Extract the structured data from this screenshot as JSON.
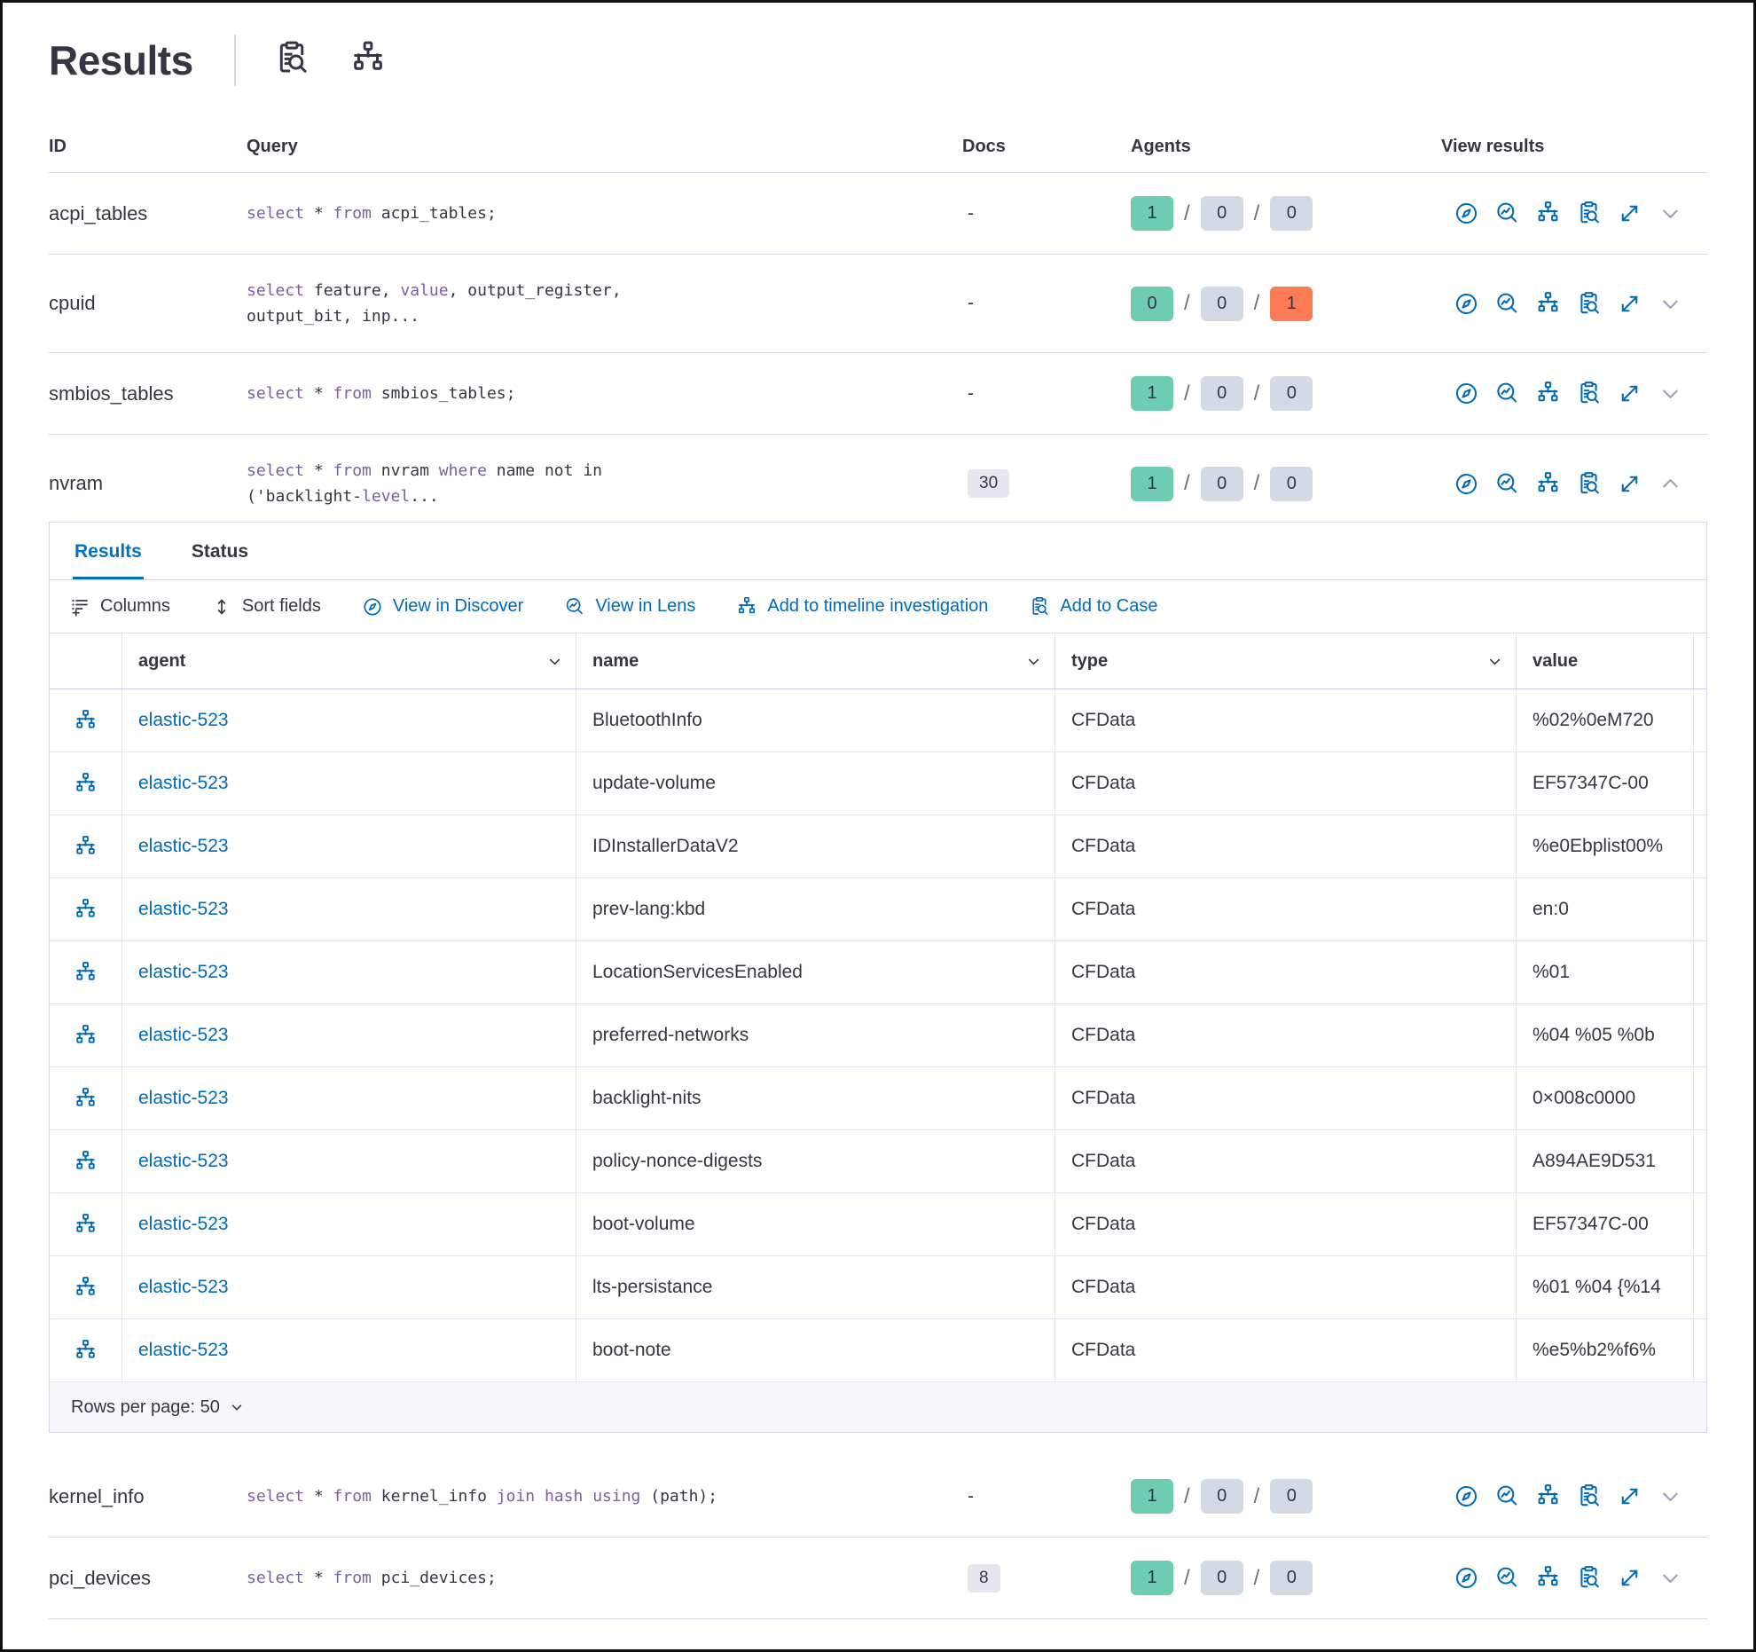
{
  "header": {
    "title": "Results",
    "actions": [
      {
        "icon": "inspect",
        "name": "inspect-results-button"
      },
      {
        "icon": "sitemap",
        "name": "view-in-timeline-button"
      }
    ]
  },
  "colors": {
    "accent_blue": "#006bb4",
    "tab_blue": "#0071c2",
    "keyword_purple": "#7c609e",
    "text_dark": "#343741",
    "border": "#d3dae6",
    "badge_green": "#6dccb1",
    "badge_gray": "#d3dae6",
    "badge_red": "#fa7b55",
    "docs_badge_bg": "#e4e7f0",
    "footer_bg": "#f6f7fb"
  },
  "table": {
    "columns": [
      "ID",
      "Query",
      "Docs",
      "Agents",
      "View results"
    ]
  },
  "queries": [
    {
      "id": "acpi_tables",
      "query": [
        {
          "t": "select",
          "k": true
        },
        {
          "t": " * "
        },
        {
          "t": "from",
          "k": true
        },
        {
          "t": " acpi_tables;"
        }
      ],
      "docs": {
        "text": "-"
      },
      "agents": [
        {
          "v": "1",
          "c": "green"
        },
        {
          "v": "0",
          "c": "gray"
        },
        {
          "v": "0",
          "c": "gray"
        }
      ],
      "expanded": false
    },
    {
      "id": "cpuid",
      "query": [
        {
          "t": "select",
          "k": true
        },
        {
          "t": " feature, "
        },
        {
          "t": "value",
          "k": true
        },
        {
          "t": ", output_register,\noutput_bit, inp..."
        }
      ],
      "docs": {
        "text": "-"
      },
      "agents": [
        {
          "v": "0",
          "c": "green"
        },
        {
          "v": "0",
          "c": "gray"
        },
        {
          "v": "1",
          "c": "red"
        }
      ],
      "expanded": false
    },
    {
      "id": "smbios_tables",
      "query": [
        {
          "t": "select",
          "k": true
        },
        {
          "t": " * "
        },
        {
          "t": "from",
          "k": true
        },
        {
          "t": " smbios_tables;"
        }
      ],
      "docs": {
        "text": "-"
      },
      "agents": [
        {
          "v": "1",
          "c": "green"
        },
        {
          "v": "0",
          "c": "gray"
        },
        {
          "v": "0",
          "c": "gray"
        }
      ],
      "expanded": false
    },
    {
      "id": "nvram",
      "query": [
        {
          "t": "select",
          "k": true
        },
        {
          "t": " * "
        },
        {
          "t": "from",
          "k": true
        },
        {
          "t": " nvram "
        },
        {
          "t": "where",
          "k": true
        },
        {
          "t": " name not in\n('backlight-"
        },
        {
          "t": "level",
          "k": true
        },
        {
          "t": "..."
        }
      ],
      "docs": {
        "badge": "30"
      },
      "agents": [
        {
          "v": "1",
          "c": "green"
        },
        {
          "v": "0",
          "c": "gray"
        },
        {
          "v": "0",
          "c": "gray"
        }
      ],
      "expanded": true
    },
    {
      "id": "kernel_info",
      "query": [
        {
          "t": "select",
          "k": true
        },
        {
          "t": " * "
        },
        {
          "t": "from",
          "k": true
        },
        {
          "t": " kernel_info "
        },
        {
          "t": "join",
          "k": true
        },
        {
          "t": " "
        },
        {
          "t": "hash",
          "k": true
        },
        {
          "t": " "
        },
        {
          "t": "using",
          "k": true
        },
        {
          "t": " (path);"
        }
      ],
      "docs": {
        "text": "-"
      },
      "agents": [
        {
          "v": "1",
          "c": "green"
        },
        {
          "v": "0",
          "c": "gray"
        },
        {
          "v": "0",
          "c": "gray"
        }
      ],
      "expanded": false
    },
    {
      "id": "pci_devices",
      "query": [
        {
          "t": "select",
          "k": true
        },
        {
          "t": " * "
        },
        {
          "t": "from",
          "k": true
        },
        {
          "t": " pci_devices;"
        }
      ],
      "docs": {
        "badge": "8"
      },
      "agents": [
        {
          "v": "1",
          "c": "green"
        },
        {
          "v": "0",
          "c": "gray"
        },
        {
          "v": "0",
          "c": "gray"
        }
      ],
      "expanded": false
    }
  ],
  "row_actions": [
    {
      "icon": "compass",
      "name": "view-in-discover-button"
    },
    {
      "icon": "lens",
      "name": "view-in-lens-button"
    },
    {
      "icon": "sitemap",
      "name": "add-to-timeline-button"
    },
    {
      "icon": "inspect",
      "name": "add-to-case-button"
    },
    {
      "icon": "expand",
      "name": "expand-results-button"
    }
  ],
  "panel": {
    "tabs": [
      {
        "label": "Results",
        "active": true
      },
      {
        "label": "Status",
        "active": false
      }
    ],
    "toolbar": [
      {
        "label": "Columns",
        "icon": "columns",
        "style": "dark",
        "name": "columns-button"
      },
      {
        "label": "Sort fields",
        "icon": "sort",
        "style": "dark",
        "name": "sort-fields-button"
      },
      {
        "label": "View in Discover",
        "icon": "compass",
        "style": "blue",
        "name": "view-in-discover-link"
      },
      {
        "label": "View in Lens",
        "icon": "lens",
        "style": "blue",
        "name": "view-in-lens-link"
      },
      {
        "label": "Add to timeline investigation",
        "icon": "sitemap",
        "style": "blue",
        "name": "add-to-timeline-link"
      },
      {
        "label": "Add to Case",
        "icon": "inspect",
        "style": "blue",
        "name": "add-to-case-link"
      }
    ],
    "grid": {
      "columns": [
        "agent",
        "name",
        "type",
        "value"
      ],
      "rows": [
        {
          "agent": "elastic-523",
          "name": "BluetoothInfo",
          "type": "CFData",
          "value": "%02%0eM720"
        },
        {
          "agent": "elastic-523",
          "name": "update-volume",
          "type": "CFData",
          "value": "EF57347C-00"
        },
        {
          "agent": "elastic-523",
          "name": "IDInstallerDataV2",
          "type": "CFData",
          "value": "%e0Ebplist00%"
        },
        {
          "agent": "elastic-523",
          "name": "prev-lang:kbd",
          "type": "CFData",
          "value": "en:0"
        },
        {
          "agent": "elastic-523",
          "name": "LocationServicesEnabled",
          "type": "CFData",
          "value": "%01"
        },
        {
          "agent": "elastic-523",
          "name": "preferred-networks",
          "type": "CFData",
          "value": "%04 %05 %0b"
        },
        {
          "agent": "elastic-523",
          "name": "backlight-nits",
          "type": "CFData",
          "value": "0×008c0000"
        },
        {
          "agent": "elastic-523",
          "name": "policy-nonce-digests",
          "type": "CFData",
          "value": "A894AE9D531"
        },
        {
          "agent": "elastic-523",
          "name": "boot-volume",
          "type": "CFData",
          "value": "EF57347C-00"
        },
        {
          "agent": "elastic-523",
          "name": "lts-persistance",
          "type": "CFData",
          "value": "%01 %04 {%14"
        },
        {
          "agent": "elastic-523",
          "name": "boot-note",
          "type": "CFData",
          "value": "%e5%b2%f6%"
        }
      ],
      "footer": "Rows per page: 50"
    }
  }
}
